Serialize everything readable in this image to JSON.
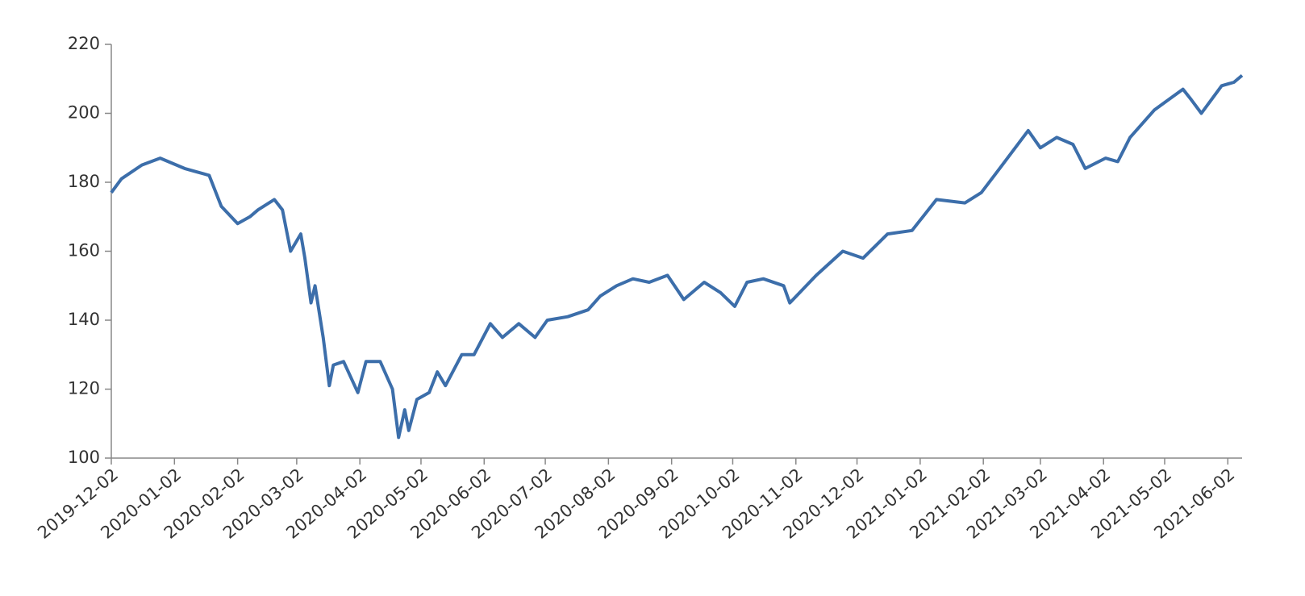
{
  "chart_data": {
    "type": "line",
    "x": [
      "2019-12-02",
      "2019-12-07",
      "2019-12-17",
      "2019-12-26",
      "2020-01-07",
      "2020-01-13",
      "2020-01-19",
      "2020-01-25",
      "2020-02-02",
      "2020-02-08",
      "2020-02-12",
      "2020-02-20",
      "2020-02-24",
      "2020-02-28",
      "2020-03-04",
      "2020-03-06",
      "2020-03-09",
      "2020-03-11",
      "2020-03-15",
      "2020-03-18",
      "2020-03-20",
      "2020-03-25",
      "2020-04-01",
      "2020-04-05",
      "2020-04-12",
      "2020-04-18",
      "2020-04-21",
      "2020-04-24",
      "2020-04-26",
      "2020-04-30",
      "2020-05-06",
      "2020-05-10",
      "2020-05-14",
      "2020-05-22",
      "2020-05-28",
      "2020-06-05",
      "2020-06-11",
      "2020-06-19",
      "2020-06-27",
      "2020-07-03",
      "2020-07-13",
      "2020-07-23",
      "2020-07-29",
      "2020-08-06",
      "2020-08-14",
      "2020-08-22",
      "2020-08-31",
      "2020-09-08",
      "2020-09-18",
      "2020-09-26",
      "2020-10-03",
      "2020-10-09",
      "2020-10-17",
      "2020-10-27",
      "2020-10-30",
      "2020-11-12",
      "2020-11-25",
      "2020-12-05",
      "2020-12-17",
      "2020-12-29",
      "2021-01-10",
      "2021-01-24",
      "2021-02-01",
      "2021-02-10",
      "2021-02-24",
      "2021-03-02",
      "2021-03-10",
      "2021-03-18",
      "2021-03-24",
      "2021-04-03",
      "2021-04-09",
      "2021-04-15",
      "2021-04-27",
      "2021-05-11",
      "2021-05-15",
      "2021-05-20",
      "2021-05-30",
      "2021-06-05",
      "2021-06-09"
    ],
    "series": [
      {
        "color": "#3c6eaa",
        "values": [
          177,
          181,
          185,
          187,
          184,
          183,
          182,
          173,
          168,
          170,
          172,
          175,
          172,
          160,
          165,
          158,
          145,
          150,
          135,
          121,
          127,
          128,
          119,
          128,
          128,
          120,
          106,
          114,
          108,
          117,
          119,
          125,
          121,
          130,
          130,
          139,
          135,
          139,
          135,
          140,
          141,
          143,
          147,
          150,
          152,
          151,
          153,
          146,
          151,
          148,
          144,
          151,
          152,
          150,
          145,
          153,
          160,
          158,
          165,
          166,
          175,
          174,
          177,
          184,
          195,
          190,
          193,
          191,
          184,
          187,
          186,
          193,
          201,
          207,
          204,
          200,
          208,
          209,
          211
        ]
      }
    ],
    "xlim": [
      "2019-12-02",
      "2021-06-09"
    ],
    "xticks": [
      "2019-12-02",
      "2020-01-02",
      "2020-02-02",
      "2020-03-02",
      "2020-04-02",
      "2020-05-02",
      "2020-06-02",
      "2020-07-02",
      "2020-08-02",
      "2020-09-02",
      "2020-10-02",
      "2020-11-02",
      "2020-12-02",
      "2021-01-02",
      "2021-02-02",
      "2021-03-02",
      "2021-04-02",
      "2021-05-02",
      "2021-06-02"
    ],
    "ylim": [
      100,
      220
    ],
    "yticks": [
      100,
      120,
      140,
      160,
      180,
      200,
      220
    ]
  }
}
